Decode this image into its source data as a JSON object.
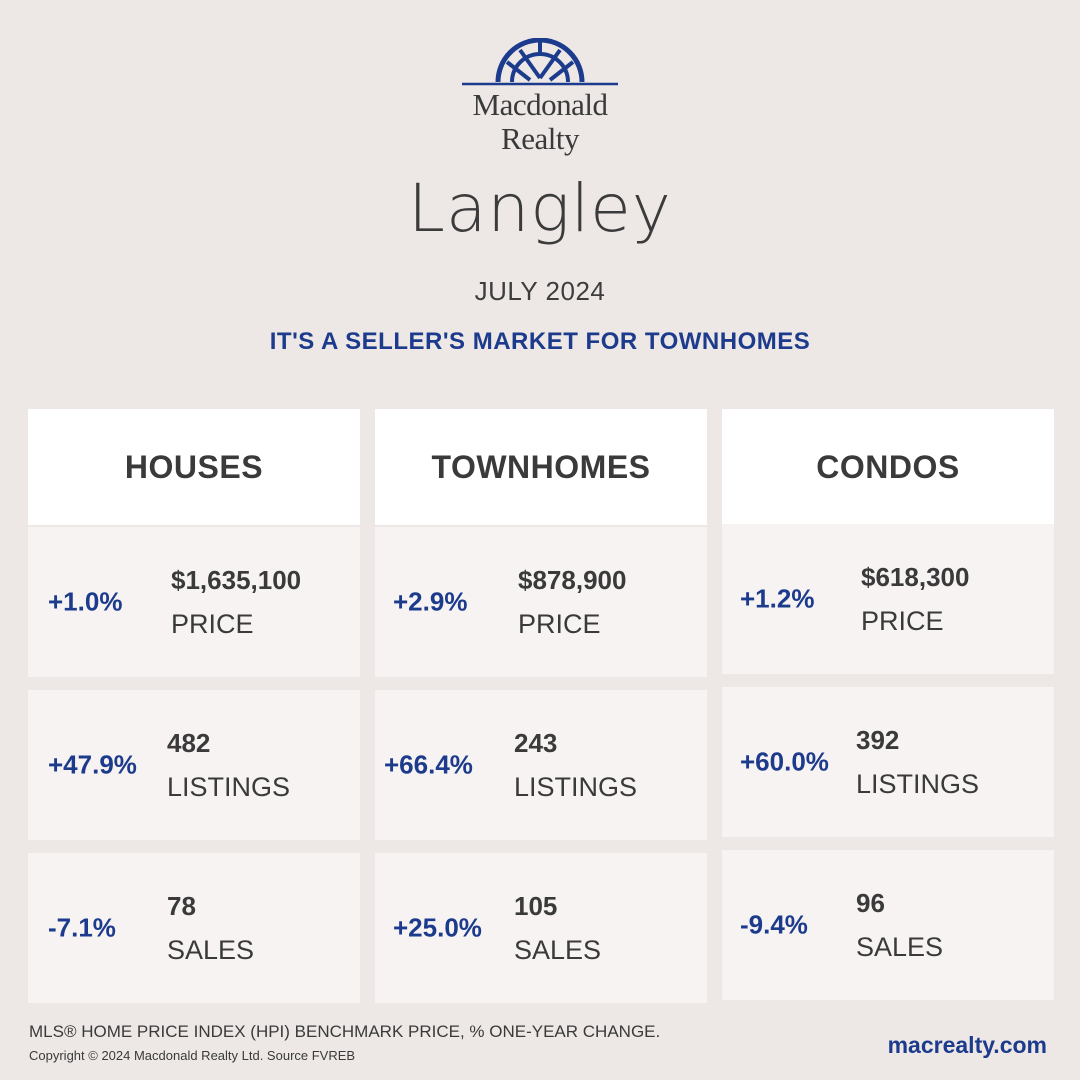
{
  "brand": {
    "name_line1": "Macdonald",
    "name_line2": "Realty",
    "logo_icon": "sunburst-arch-logo",
    "color": "#1d3b8c"
  },
  "title": "Langley",
  "date": "JULY 2024",
  "headline": "IT'S A SELLER'S MARKET FOR TOWNHOMES",
  "columns": [
    {
      "heading": "HOUSES",
      "rows": [
        {
          "change": "+1.0%",
          "value": "$1,635,100",
          "label": "PRICE"
        },
        {
          "change": "+47.9%",
          "value": "482",
          "label": "LISTINGS"
        },
        {
          "change": "-7.1%",
          "value": "78",
          "label": "SALES"
        }
      ]
    },
    {
      "heading": "TOWNHOMES",
      "rows": [
        {
          "change": "+2.9%",
          "value": "$878,900",
          "label": "PRICE"
        },
        {
          "change": "+66.4%",
          "value": "243",
          "label": "LISTINGS"
        },
        {
          "change": "+25.0%",
          "value": "105",
          "label": "SALES"
        }
      ]
    },
    {
      "heading": "CONDOS",
      "rows": [
        {
          "change": "+1.2%",
          "value": "$618,300",
          "label": "PRICE"
        },
        {
          "change": "+60.0%",
          "value": "392",
          "label": "LISTINGS"
        },
        {
          "change": "-9.4%",
          "value": "96",
          "label": "SALES"
        }
      ]
    }
  ],
  "footer": {
    "note": "MLS® HOME PRICE INDEX (HPI) BENCHMARK PRICE, % ONE-YEAR CHANGE.",
    "copyright": "Copyright © 2024 Macdonald Realty Ltd. Source FVREB",
    "url": "macrealty.com"
  }
}
